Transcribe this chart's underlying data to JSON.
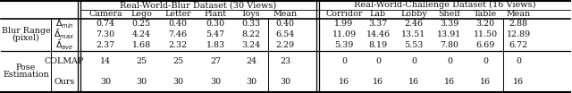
{
  "title_left": "Real-World-Blur Dataset (30 Views)",
  "title_right": "Real-World-Challenge Dataset (16 Views)",
  "left_cols": [
    "Camera",
    "Lego",
    "Letter",
    "Plant",
    "Toys",
    "Mean"
  ],
  "right_cols": [
    "Corridor",
    "Lab",
    "Lobby",
    "Shelf",
    "Table",
    "Mean"
  ],
  "row_group1_label1": "Blur Range",
  "row_group1_label2": "(pixel)",
  "row_group1_subrows": [
    {
      "label": "$\\bar{\\Delta}_{min}$",
      "left": [
        "0.74",
        "0.25",
        "0.40",
        "0.30",
        "0.33",
        "0.40"
      ],
      "right": [
        "1.99",
        "3.37",
        "2.46",
        "3.39",
        "3.20",
        "2.88"
      ]
    },
    {
      "label": "$\\bar{\\Delta}_{max}$",
      "left": [
        "7.30",
        "4.24",
        "7.46",
        "5.47",
        "8.22",
        "6.54"
      ],
      "right": [
        "11.09",
        "14.46",
        "13.51",
        "13.91",
        "11.50",
        "12.89"
      ]
    },
    {
      "label": "$\\bar{\\Delta}_{ave}$",
      "left": [
        "2.37",
        "1.68",
        "2.32",
        "1.83",
        "3.24",
        "2.29"
      ],
      "right": [
        "5.39",
        "8.19",
        "5.53",
        "7.80",
        "6.69",
        "6.72"
      ]
    }
  ],
  "row_group2_label1": "Pose",
  "row_group2_label2": "Estimation",
  "row_group2_subrows": [
    {
      "label": "COLMAP",
      "left": [
        "14",
        "25",
        "25",
        "27",
        "24",
        "23"
      ],
      "right": [
        "0",
        "0",
        "0",
        "0",
        "0",
        "0"
      ]
    },
    {
      "label": "Ours",
      "left": [
        "30",
        "30",
        "30",
        "30",
        "30",
        "30"
      ],
      "right": [
        "16",
        "16",
        "16",
        "16",
        "16",
        "16"
      ]
    }
  ],
  "font_size": 6.8,
  "title_font_size": 7.0,
  "text_color": "#111111"
}
